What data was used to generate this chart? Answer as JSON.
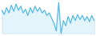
{
  "y": [
    60,
    52,
    65,
    55,
    70,
    58,
    72,
    60,
    68,
    55,
    62,
    50,
    65,
    55,
    68,
    58,
    65,
    55,
    60,
    50,
    55,
    45,
    35,
    20,
    75,
    15,
    40,
    30,
    48,
    35,
    50,
    40,
    52,
    42,
    50,
    40,
    48,
    38,
    50,
    40
  ],
  "line_color": "#4db8e8",
  "background_color": "#ffffff",
  "linewidth": 0.8
}
